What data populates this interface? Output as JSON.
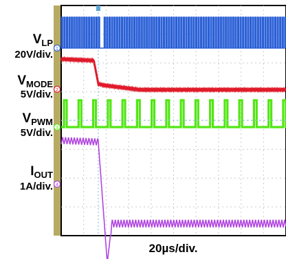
{
  "chart_data": {
    "type": "line",
    "title": "",
    "xlabel": "20µs/div.",
    "time_per_div_us": 20,
    "divisions_x": 10,
    "divisions_y": 8,
    "trigger_time_us": 33,
    "grid": true,
    "channels": [
      {
        "name_main": "V",
        "name_sub": "LP",
        "scale": "20V/div.",
        "marker": "1",
        "color": "#2a5fd6",
        "description": "square wave 0–28V before mode change, switching pauses at ~33µs, resumes at ~38µs",
        "series": [
          {
            "x": 0,
            "y": 0
          },
          {
            "x": 32,
            "y": 28
          },
          {
            "x": 33,
            "y": 0
          },
          {
            "x": 38,
            "y": 0
          },
          {
            "x": 38.5,
            "y": 28
          },
          {
            "x": 70,
            "y": 28
          }
        ],
        "switching_period_us": 2.2,
        "high_v": 28,
        "low_v": 0
      },
      {
        "name_main": "V",
        "name_sub": "MODE",
        "scale": "5V/div.",
        "marker": "2",
        "color": "#e01a2a",
        "series": [
          {
            "x": 0,
            "y": 5
          },
          {
            "x": 29,
            "y": 4.7
          },
          {
            "x": 33,
            "y": 0
          },
          {
            "x": 38,
            "y": -0.3
          },
          {
            "x": 70,
            "y": -1.2
          }
        ]
      },
      {
        "name_main": "V",
        "name_sub": "PWM",
        "scale": "5V/div.",
        "marker": "3",
        "color": "#52e614",
        "pulse_period_us": 13,
        "pulse_width_us": 2.4,
        "high_v": 5,
        "low_v": 0
      },
      {
        "name_main": "I",
        "name_sub": "OUT",
        "scale": "1A/div.",
        "marker": "4",
        "color": "#b044e0",
        "series": [
          {
            "x": 0,
            "y": 1.55
          },
          {
            "x": 33,
            "y": 1.5
          },
          {
            "x": 41,
            "y": -2.8
          },
          {
            "x": 45,
            "y": -1.4
          },
          {
            "x": 70,
            "y": -1.4
          }
        ],
        "ripple_a": 0.25
      }
    ]
  }
}
